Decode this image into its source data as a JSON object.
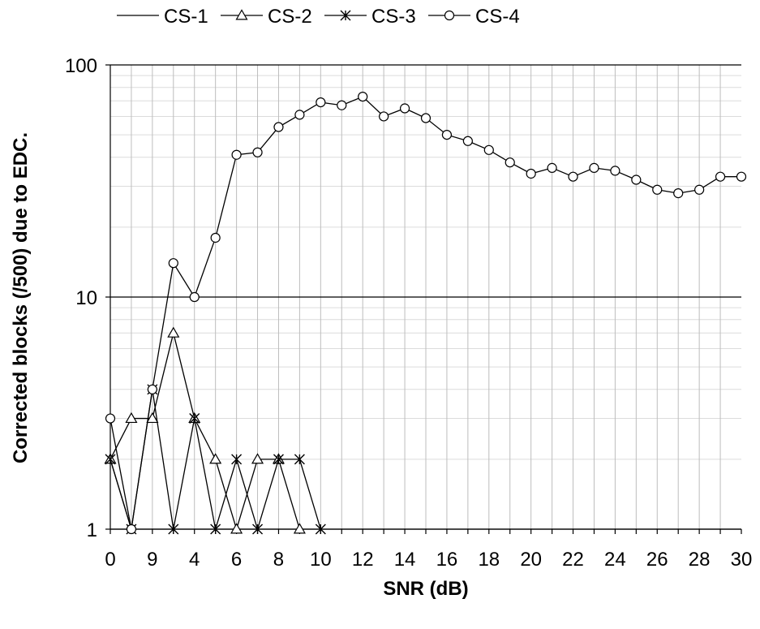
{
  "chart_data": {
    "type": "line",
    "title": "",
    "xlabel": "SNR (dB)",
    "ylabel": "Corrected blocks (/500) due to EDC.",
    "yscale": "log",
    "ylim": [
      1,
      100
    ],
    "xlim": [
      0,
      30
    ],
    "grid": true,
    "legend_position": "top",
    "x_tick_labels": [
      "0",
      "9",
      "4",
      "6",
      "8",
      "10",
      "12",
      "14",
      "16",
      "18",
      "20",
      "22",
      "24",
      "26",
      "28",
      "30"
    ],
    "y_tick_labels": [
      "1",
      "10",
      "100"
    ],
    "series": [
      {
        "name": "CS-1",
        "marker": "none",
        "x": [
          0,
          1
        ],
        "values": [
          2,
          1
        ]
      },
      {
        "name": "CS-2",
        "marker": "triangle",
        "x": [
          0,
          1,
          2,
          3,
          4,
          5,
          6,
          7,
          8,
          9
        ],
        "values": [
          2,
          3,
          3,
          7,
          3,
          2,
          1,
          2,
          2,
          1
        ]
      },
      {
        "name": "CS-3",
        "marker": "asterisk",
        "x": [
          0,
          1,
          2,
          3,
          4,
          5,
          6,
          7,
          8,
          9,
          10
        ],
        "values": [
          2,
          1,
          4,
          1,
          3,
          1,
          2,
          1,
          2,
          2,
          1
        ]
      },
      {
        "name": "CS-4",
        "marker": "circle",
        "x": [
          0,
          1,
          2,
          3,
          4,
          5,
          6,
          7,
          8,
          9,
          10,
          11,
          12,
          13,
          14,
          15,
          16,
          17,
          18,
          19,
          20,
          21,
          22,
          23,
          24,
          25,
          26,
          27,
          28,
          29,
          30
        ],
        "values": [
          3,
          1,
          4,
          14,
          10,
          18,
          41,
          42,
          54,
          61,
          69,
          67,
          73,
          60,
          65,
          59,
          50,
          47,
          43,
          38,
          34,
          36,
          33,
          36,
          35,
          32,
          29,
          28,
          29,
          33,
          33
        ]
      }
    ]
  }
}
